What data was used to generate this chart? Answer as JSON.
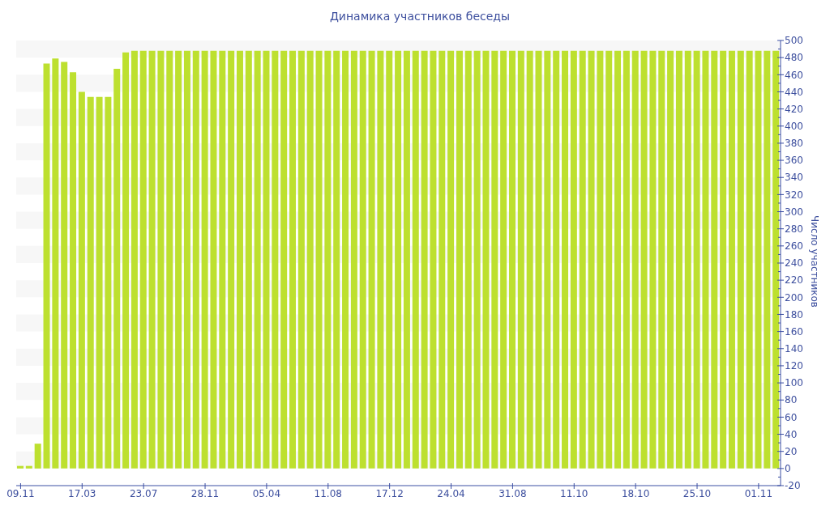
{
  "chart_data": {
    "type": "bar",
    "title": "Динамика участников беседы",
    "ylabel": "Число участников",
    "categories": [
      "09.11",
      null,
      null,
      null,
      null,
      null,
      null,
      "17.03",
      null,
      null,
      null,
      null,
      null,
      null,
      "23.07",
      null,
      null,
      null,
      null,
      null,
      null,
      "28.11",
      null,
      null,
      null,
      null,
      null,
      null,
      "05.04",
      null,
      null,
      null,
      null,
      null,
      null,
      "11.08",
      null,
      null,
      null,
      null,
      null,
      null,
      "17.12",
      null,
      null,
      null,
      null,
      null,
      null,
      "24.04",
      null,
      null,
      null,
      null,
      null,
      null,
      "31.08",
      null,
      null,
      null,
      null,
      null,
      null,
      "11.10",
      null,
      null,
      null,
      null,
      null,
      null,
      "18.10",
      null,
      null,
      null,
      null,
      null,
      null,
      "25.10",
      null,
      null,
      null,
      null,
      null,
      null,
      "01.11",
      null,
      null
    ],
    "values": [
      3,
      3,
      29,
      473,
      479,
      475,
      463,
      440,
      434,
      434,
      434,
      467,
      486,
      488,
      488,
      488,
      488,
      488,
      488,
      488,
      488,
      488,
      488,
      488,
      488,
      488,
      488,
      488,
      488,
      488,
      488,
      488,
      488,
      488,
      488,
      488,
      488,
      488,
      488,
      488,
      488,
      488,
      488,
      488,
      488,
      488,
      488,
      488,
      488,
      488,
      488,
      488,
      488,
      488,
      488,
      488,
      488,
      488,
      488,
      488,
      488,
      488,
      488,
      488,
      488,
      488,
      488,
      488,
      488,
      488,
      488,
      488,
      488,
      488,
      488,
      488,
      488,
      488,
      488,
      488,
      488,
      488,
      488,
      488,
      488,
      488,
      488
    ],
    "color": "#bde02f",
    "ylim": [
      -20,
      500
    ],
    "yticks": [
      -20,
      {
        "value": -10,
        "label": null
      },
      0,
      {
        "value": 10,
        "label": null
      },
      20,
      {
        "value": 30,
        "label": null
      },
      40,
      {
        "value": 50,
        "label": null
      },
      60,
      {
        "value": 70,
        "label": null
      },
      80,
      {
        "value": 90,
        "label": null
      },
      100,
      {
        "value": 110,
        "label": null
      },
      120,
      {
        "value": 130,
        "label": null
      },
      140,
      {
        "value": 150,
        "label": null
      },
      160,
      {
        "value": 170,
        "label": null
      },
      180,
      {
        "value": 190,
        "label": null
      },
      200,
      {
        "value": 210,
        "label": null
      },
      220,
      {
        "value": 230,
        "label": null
      },
      240,
      {
        "value": 250,
        "label": null
      },
      260,
      {
        "value": 270,
        "label": null
      },
      280,
      {
        "value": 290,
        "label": null
      },
      300,
      {
        "value": 310,
        "label": null
      },
      320,
      {
        "value": 330,
        "label": null
      },
      340,
      {
        "value": 350,
        "label": null
      },
      360,
      {
        "value": 370,
        "label": null
      },
      380,
      {
        "value": 390,
        "label": null
      },
      400,
      {
        "value": 410,
        "label": null
      },
      420,
      {
        "value": 430,
        "label": null
      },
      440,
      {
        "value": 450,
        "label": null
      },
      460,
      {
        "value": 470,
        "label": null
      },
      480,
      {
        "value": 490,
        "label": null
      },
      500
    ],
    "bands": [
      {
        "axis": "y",
        "from": 0,
        "to": 20,
        "color": "#f7f7f7"
      },
      {
        "axis": "y",
        "from": 40,
        "to": 60,
        "color": "#f7f7f7"
      },
      {
        "axis": "y",
        "from": 80,
        "to": 100,
        "color": "#f7f7f7"
      },
      {
        "axis": "y",
        "from": 120,
        "to": 140,
        "color": "#f7f7f7"
      },
      {
        "axis": "y",
        "from": 160,
        "to": 180,
        "color": "#f7f7f7"
      },
      {
        "axis": "y",
        "from": 200,
        "to": 220,
        "color": "#f7f7f7"
      },
      {
        "axis": "y",
        "from": 240,
        "to": 260,
        "color": "#f7f7f7"
      },
      {
        "axis": "y",
        "from": 280,
        "to": 300,
        "color": "#f7f7f7"
      },
      {
        "axis": "y",
        "from": 320,
        "to": 340,
        "color": "#f7f7f7"
      },
      {
        "axis": "y",
        "from": 360,
        "to": 380,
        "color": "#f7f7f7"
      },
      {
        "axis": "y",
        "from": 400,
        "to": 420,
        "color": "#f7f7f7"
      },
      {
        "axis": "y",
        "from": 440,
        "to": 460,
        "color": "#f7f7f7"
      },
      {
        "axis": "y",
        "from": 480,
        "to": 500,
        "color": "#f7f7f7"
      }
    ]
  }
}
